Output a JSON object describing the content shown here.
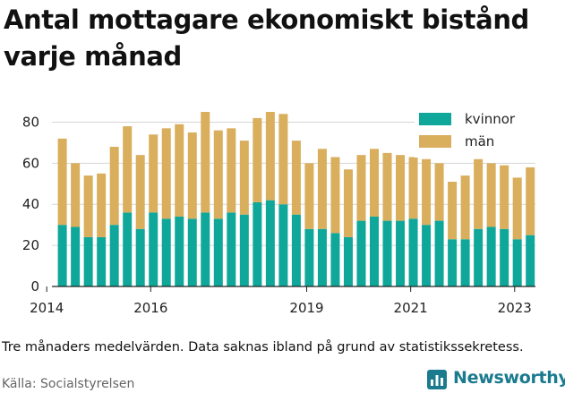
{
  "title": "Antal mottagare ekonomiskt bistånd varje månad",
  "note": "Tre månaders medelvärden. Data saknas ibland på grund av statistikssekretess.",
  "source": "Källa: Socialstyrelsen",
  "logo": {
    "text": "Newsworthy",
    "icon": "bar-chart-logo-icon",
    "color": "#1a7a8e"
  },
  "colors": {
    "kvinnor": "#0fa79a",
    "man": "#d9ae5d"
  },
  "chart_data": {
    "type": "bar",
    "stacked": true,
    "title": "Antal mottagare ekonomiskt bistånd varje månad",
    "xlabel": "",
    "ylabel": "",
    "ylim": [
      0,
      85
    ],
    "yticks": [
      0,
      20,
      40,
      60,
      80
    ],
    "xlim": [
      2014.1,
      2023.4
    ],
    "xticks": [
      2014,
      2016,
      2019,
      2021,
      2023
    ],
    "grid": true,
    "legend": "top-right",
    "x": [
      2014.3,
      2014.55,
      2014.8,
      2015.05,
      2015.3,
      2015.55,
      2015.8,
      2016.05,
      2016.3,
      2016.55,
      2016.8,
      2017.05,
      2017.3,
      2017.55,
      2017.8,
      2018.05,
      2018.3,
      2018.55,
      2018.8,
      2019.05,
      2019.3,
      2019.55,
      2019.8,
      2020.05,
      2020.3,
      2020.55,
      2020.8,
      2021.05,
      2021.3,
      2021.55,
      2021.8,
      2022.05,
      2022.3,
      2022.55,
      2022.8,
      2023.05,
      2023.3
    ],
    "series": [
      {
        "name": "kvinnor",
        "values": [
          30,
          29,
          24,
          24,
          30,
          36,
          28,
          36,
          33,
          34,
          33,
          36,
          33,
          36,
          35,
          41,
          42,
          40,
          35,
          28,
          28,
          26,
          24,
          32,
          34,
          32,
          32,
          33,
          30,
          32,
          23,
          23,
          28,
          29,
          28,
          23,
          25
        ]
      },
      {
        "name": "män",
        "values": [
          42,
          31,
          30,
          31,
          38,
          42,
          36,
          38,
          44,
          45,
          42,
          49,
          43,
          41,
          36,
          41,
          43,
          44,
          36,
          32,
          39,
          37,
          33,
          32,
          33,
          33,
          32,
          30,
          32,
          28,
          28,
          31,
          34,
          31,
          31,
          30,
          33
        ]
      }
    ]
  }
}
